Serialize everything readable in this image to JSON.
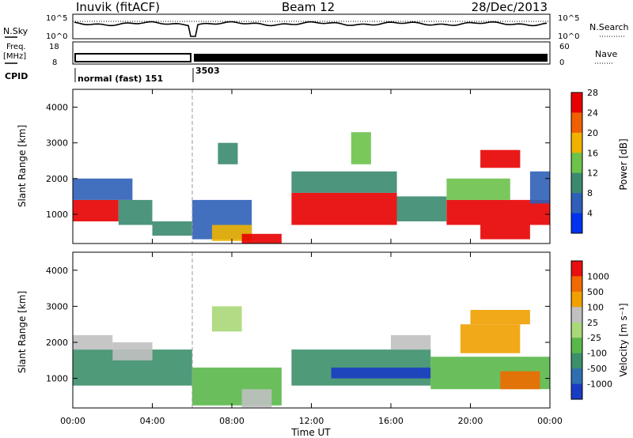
{
  "header": {
    "station": "Inuvik (fitACF)",
    "beam": "Beam 12",
    "date": "28/Dec/2013"
  },
  "status_panels": {
    "nsky": {
      "left_label": "N.Sky",
      "right_label": "N.Search",
      "left_ticks": [
        "10^5",
        "10^0"
      ],
      "right_ticks": [
        "10^5",
        "10^0"
      ]
    },
    "freq": {
      "left_label_1": "Freq.",
      "left_label_2": "[MHz]",
      "right_label": "Nave",
      "left_ticks": [
        "18",
        "8"
      ],
      "right_ticks": [
        "60",
        "0"
      ]
    },
    "cpid": {
      "label": "CPID",
      "segment_1": "normal (fast) 151",
      "segment_2": "3503"
    }
  },
  "chart_data": [
    {
      "type": "heatmap",
      "title": "",
      "xlabel": "Time UT",
      "ylabel": "Slant Range [km]",
      "x_ticks": [
        "00:00",
        "04:00",
        "08:00",
        "12:00",
        "16:00",
        "20:00",
        "00:00"
      ],
      "x_range_hours": [
        0,
        24
      ],
      "y_ticks": [
        1000,
        2000,
        3000,
        4000
      ],
      "ylim": [
        180,
        4500
      ],
      "colorbar": {
        "label": "Power [dB]",
        "ticks": [
          4,
          8,
          12,
          16,
          20,
          24,
          28
        ],
        "colors": [
          "#0033ee",
          "#2f5fb8",
          "#3b8a70",
          "#6cc24a",
          "#f0b200",
          "#f06000",
          "#e80000"
        ]
      },
      "regions": [
        {
          "t": [
            0.0,
            2.3
          ],
          "r": [
            800,
            1400
          ],
          "level": 28
        },
        {
          "t": [
            0.0,
            3.0
          ],
          "r": [
            1400,
            2000
          ],
          "level": 8
        },
        {
          "t": [
            2.3,
            4.0
          ],
          "r": [
            700,
            1400
          ],
          "level": 12
        },
        {
          "t": [
            4.0,
            6.0
          ],
          "r": [
            400,
            800
          ],
          "level": 12
        },
        {
          "t": [
            6.0,
            9.0
          ],
          "r": [
            300,
            1400
          ],
          "level": 8
        },
        {
          "t": [
            7.0,
            9.0
          ],
          "r": [
            250,
            700
          ],
          "level": 20
        },
        {
          "t": [
            8.5,
            10.5
          ],
          "r": [
            180,
            450
          ],
          "level": 28
        },
        {
          "t": [
            7.3,
            8.3
          ],
          "r": [
            2400,
            3000
          ],
          "level": 12
        },
        {
          "t": [
            11.0,
            16.3
          ],
          "r": [
            700,
            1600
          ],
          "level": 28
        },
        {
          "t": [
            11.0,
            16.3
          ],
          "r": [
            1600,
            2200
          ],
          "level": 12
        },
        {
          "t": [
            14.0,
            15.0
          ],
          "r": [
            2400,
            3300
          ],
          "level": 16
        },
        {
          "t": [
            16.3,
            18.8
          ],
          "r": [
            800,
            1500
          ],
          "level": 12
        },
        {
          "t": [
            18.8,
            24.0
          ],
          "r": [
            700,
            1400
          ],
          "level": 28
        },
        {
          "t": [
            18.8,
            22.0
          ],
          "r": [
            1400,
            2000
          ],
          "level": 16
        },
        {
          "t": [
            20.5,
            22.5
          ],
          "r": [
            2300,
            2800
          ],
          "level": 28
        },
        {
          "t": [
            20.5,
            23.0
          ],
          "r": [
            300,
            700
          ],
          "level": 28
        },
        {
          "t": [
            23.0,
            24.0
          ],
          "r": [
            1300,
            2200
          ],
          "level": 8
        }
      ]
    },
    {
      "type": "heatmap",
      "title": "",
      "xlabel": "Time UT",
      "ylabel": "Slant Range [km]",
      "x_ticks": [
        "00:00",
        "04:00",
        "08:00",
        "12:00",
        "16:00",
        "20:00",
        "00:00"
      ],
      "x_range_hours": [
        0,
        24
      ],
      "y_ticks": [
        1000,
        2000,
        3000,
        4000
      ],
      "ylim": [
        180,
        4500
      ],
      "colorbar": {
        "label": "Velocity [m s⁻¹]",
        "ticks": [
          1000,
          500,
          100,
          25,
          -25,
          -100,
          -500,
          -1000
        ],
        "colors": [
          "#1a3cc4",
          "#2f6fb0",
          "#3c8f6a",
          "#5ab84a",
          "#a8d878",
          "#c0c0c0",
          "#f0a000",
          "#f06a00",
          "#e81010"
        ]
      },
      "regions": [
        {
          "t": [
            0.0,
            6.0
          ],
          "r": [
            800,
            1800
          ],
          "level": 2
        },
        {
          "t": [
            0.0,
            2.0
          ],
          "r": [
            1800,
            2200
          ],
          "level": 5
        },
        {
          "t": [
            2.0,
            4.0
          ],
          "r": [
            1500,
            2000
          ],
          "level": 5
        },
        {
          "t": [
            6.0,
            10.5
          ],
          "r": [
            250,
            1300
          ],
          "level": 3
        },
        {
          "t": [
            8.5,
            10.0
          ],
          "r": [
            200,
            700
          ],
          "level": 5
        },
        {
          "t": [
            7.0,
            8.5
          ],
          "r": [
            2300,
            3000
          ],
          "level": 4
        },
        {
          "t": [
            11.0,
            18.0
          ],
          "r": [
            800,
            1800
          ],
          "level": 2
        },
        {
          "t": [
            13.0,
            18.0
          ],
          "r": [
            1000,
            1300
          ],
          "level": 0
        },
        {
          "t": [
            16.0,
            18.0
          ],
          "r": [
            1800,
            2200
          ],
          "level": 5
        },
        {
          "t": [
            18.0,
            24.0
          ],
          "r": [
            700,
            1600
          ],
          "level": 3
        },
        {
          "t": [
            19.5,
            22.5
          ],
          "r": [
            1700,
            2500
          ],
          "level": 6
        },
        {
          "t": [
            21.5,
            23.5
          ],
          "r": [
            700,
            1200
          ],
          "level": 7
        },
        {
          "t": [
            20.0,
            23.0
          ],
          "r": [
            2500,
            2900
          ],
          "level": 6
        }
      ]
    }
  ]
}
